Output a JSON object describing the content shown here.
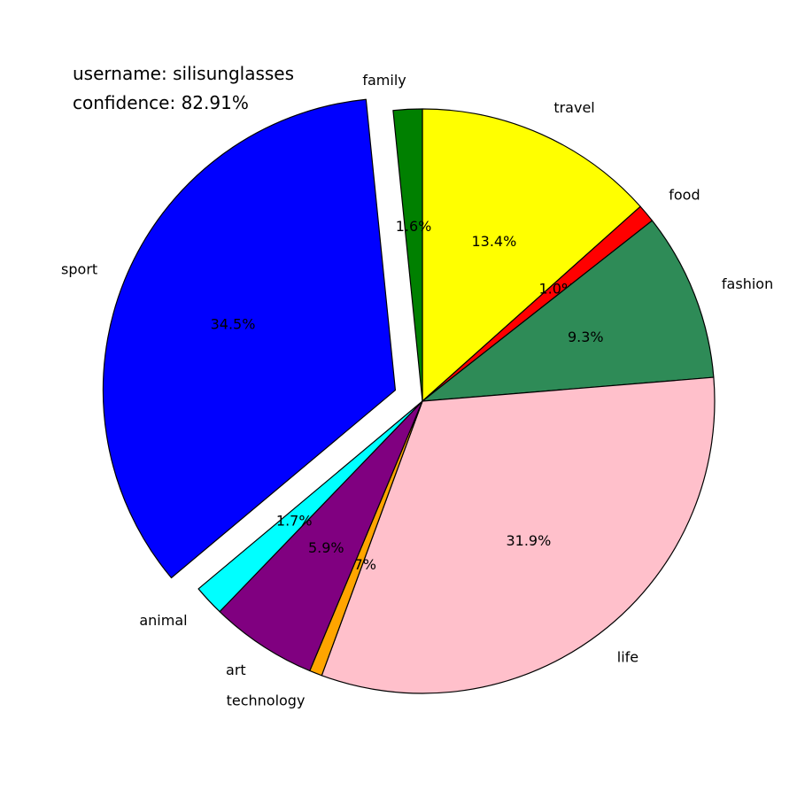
{
  "info": {
    "username": "username: silisunglasses",
    "confidence": "confidence: 82.91%"
  },
  "chart_data": {
    "type": "pie",
    "start_angle_deg": 90,
    "direction": "clockwise",
    "exploded_slice": "sport",
    "slices": [
      {
        "label": "travel",
        "value": 13.4,
        "pct_label": "13.4%",
        "color": "#ffff00"
      },
      {
        "label": "food",
        "value": 1.0,
        "pct_label": "1.0%",
        "color": "#ff0000"
      },
      {
        "label": "fashion",
        "value": 9.3,
        "pct_label": "9.3%",
        "color": "#2e8b57"
      },
      {
        "label": "life",
        "value": 31.9,
        "pct_label": "31.9%",
        "color": "#ffc0cb"
      },
      {
        "label": "technology",
        "value": 0.7,
        "pct_label": "0.7%",
        "color": "#ffa500"
      },
      {
        "label": "art",
        "value": 5.9,
        "pct_label": "5.9%",
        "color": "#800080"
      },
      {
        "label": "animal",
        "value": 1.7,
        "pct_label": "1.7%",
        "color": "#00ffff"
      },
      {
        "label": "sport",
        "value": 34.5,
        "pct_label": "34.5%",
        "color": "#0000ff"
      },
      {
        "label": "family",
        "value": 1.6,
        "pct_label": "1.6%",
        "color": "#008000"
      }
    ]
  }
}
